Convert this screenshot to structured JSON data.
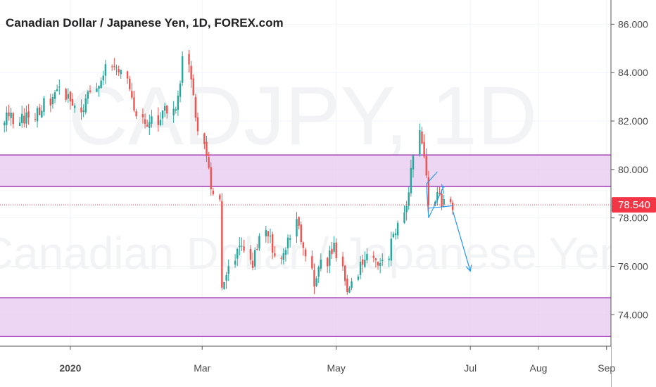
{
  "header": {
    "title": "Canadian Dollar / Japanese Yen, 1D, FOREX.com"
  },
  "watermark": {
    "symbol": "CADJPY, 1D",
    "name": "Canadian Dollar / Japanese Yen"
  },
  "price_tag": {
    "value": "78.540",
    "color": "#f23645"
  },
  "colors": {
    "up": "#26a69a",
    "down": "#ef5350",
    "zone_fill": "#e7c8ef",
    "zone_border": "#9c27b0",
    "drawing": "#2196f3",
    "grid": "#f0f3fa",
    "axis": "#555555"
  },
  "chart_data": {
    "type": "candlestick",
    "title": "Canadian Dollar / Japanese Yen, 1D, FOREX.com",
    "y_ticks": [
      "74.000",
      "76.000",
      "78.000",
      "80.000",
      "82.000",
      "84.000",
      "86.000"
    ],
    "x_ticks": [
      "2020",
      "Mar",
      "May",
      "Jul",
      "Aug",
      "Sep"
    ],
    "ylim": [
      72.7,
      87.0
    ],
    "last_price": 78.54,
    "zones": [
      {
        "low": 79.3,
        "high": 80.6
      },
      {
        "low": 73.1,
        "high": 74.7
      }
    ],
    "segments": [
      {
        "start": "2019-12-01",
        "end": "2019-12-12",
        "from": 82.2,
        "to": 82.1
      },
      {
        "start": "2019-12-13",
        "end": "2019-12-26",
        "from": 82.1,
        "to": 83.3
      },
      {
        "start": "2019-12-27",
        "end": "2020-01-06",
        "from": 83.2,
        "to": 82.6
      },
      {
        "start": "2020-01-07",
        "end": "2020-01-17",
        "from": 82.7,
        "to": 84.3
      },
      {
        "start": "2020-01-18",
        "end": "2020-01-23",
        "from": 84.3,
        "to": 84.1
      },
      {
        "start": "2020-01-24",
        "end": "2020-02-04",
        "from": 84.0,
        "to": 81.7
      },
      {
        "start": "2020-02-05",
        "end": "2020-02-18",
        "from": 81.8,
        "to": 82.7
      },
      {
        "start": "2020-02-19",
        "end": "2020-02-21",
        "from": 83.0,
        "to": 84.5
      },
      {
        "start": "2020-02-22",
        "end": "2020-03-06",
        "from": 84.2,
        "to": 78.8
      },
      {
        "start": "2020-03-07",
        "end": "2020-03-10",
        "from": 78.6,
        "to": 75.0
      },
      {
        "start": "2020-03-11",
        "end": "2020-03-18",
        "from": 75.2,
        "to": 76.9
      },
      {
        "start": "2020-03-19",
        "end": "2020-03-24",
        "from": 76.6,
        "to": 76.0
      },
      {
        "start": "2020-03-25",
        "end": "2020-03-30",
        "from": 76.4,
        "to": 77.6
      },
      {
        "start": "2020-03-31",
        "end": "2020-04-06",
        "from": 77.3,
        "to": 76.1
      },
      {
        "start": "2020-04-07",
        "end": "2020-04-13",
        "from": 76.3,
        "to": 77.8
      },
      {
        "start": "2020-04-14",
        "end": "2020-04-21",
        "from": 77.5,
        "to": 75.4
      },
      {
        "start": "2020-04-22",
        "end": "2020-04-30",
        "from": 75.6,
        "to": 76.9
      },
      {
        "start": "2020-05-01",
        "end": "2020-05-06",
        "from": 76.6,
        "to": 75.1
      },
      {
        "start": "2020-05-07",
        "end": "2020-05-15",
        "from": 75.3,
        "to": 76.6
      },
      {
        "start": "2020-05-16",
        "end": "2020-05-21",
        "from": 76.5,
        "to": 76.0
      },
      {
        "start": "2020-05-22",
        "end": "2020-05-29",
        "from": 76.2,
        "to": 77.9
      },
      {
        "start": "2020-05-30",
        "end": "2020-06-02",
        "from": 78.0,
        "to": 78.7
      },
      {
        "start": "2020-06-03",
        "end": "2020-06-08",
        "from": 79.0,
        "to": 81.5
      },
      {
        "start": "2020-06-09",
        "end": "2020-06-12",
        "from": 81.2,
        "to": 78.7
      },
      {
        "start": "2020-06-13",
        "end": "2020-06-19",
        "from": 78.9,
        "to": 78.6
      },
      {
        "start": "2020-06-20",
        "end": "2020-06-23",
        "from": 78.9,
        "to": 78.5
      }
    ],
    "drawings": [
      {
        "kind": "line",
        "x": [
          "2020-06-11",
          "2020-06-16"
        ],
        "y": [
          79.4,
          79.9
        ]
      },
      {
        "kind": "line",
        "x": [
          "2020-06-11",
          "2020-06-12"
        ],
        "y": [
          79.4,
          78.0
        ]
      },
      {
        "kind": "line",
        "x": [
          "2020-06-12",
          "2020-06-19"
        ],
        "y": [
          78.0,
          79.3
        ]
      },
      {
        "kind": "line",
        "x": [
          "2020-06-12",
          "2020-06-23"
        ],
        "y": [
          78.4,
          78.5
        ]
      },
      {
        "kind": "line",
        "x": [
          "2020-06-18",
          "2020-06-19"
        ],
        "y": [
          79.4,
          79.0
        ]
      },
      {
        "kind": "arrow",
        "x": [
          "2020-06-23",
          "2020-07-01"
        ],
        "y": [
          78.3,
          75.8
        ]
      }
    ]
  }
}
